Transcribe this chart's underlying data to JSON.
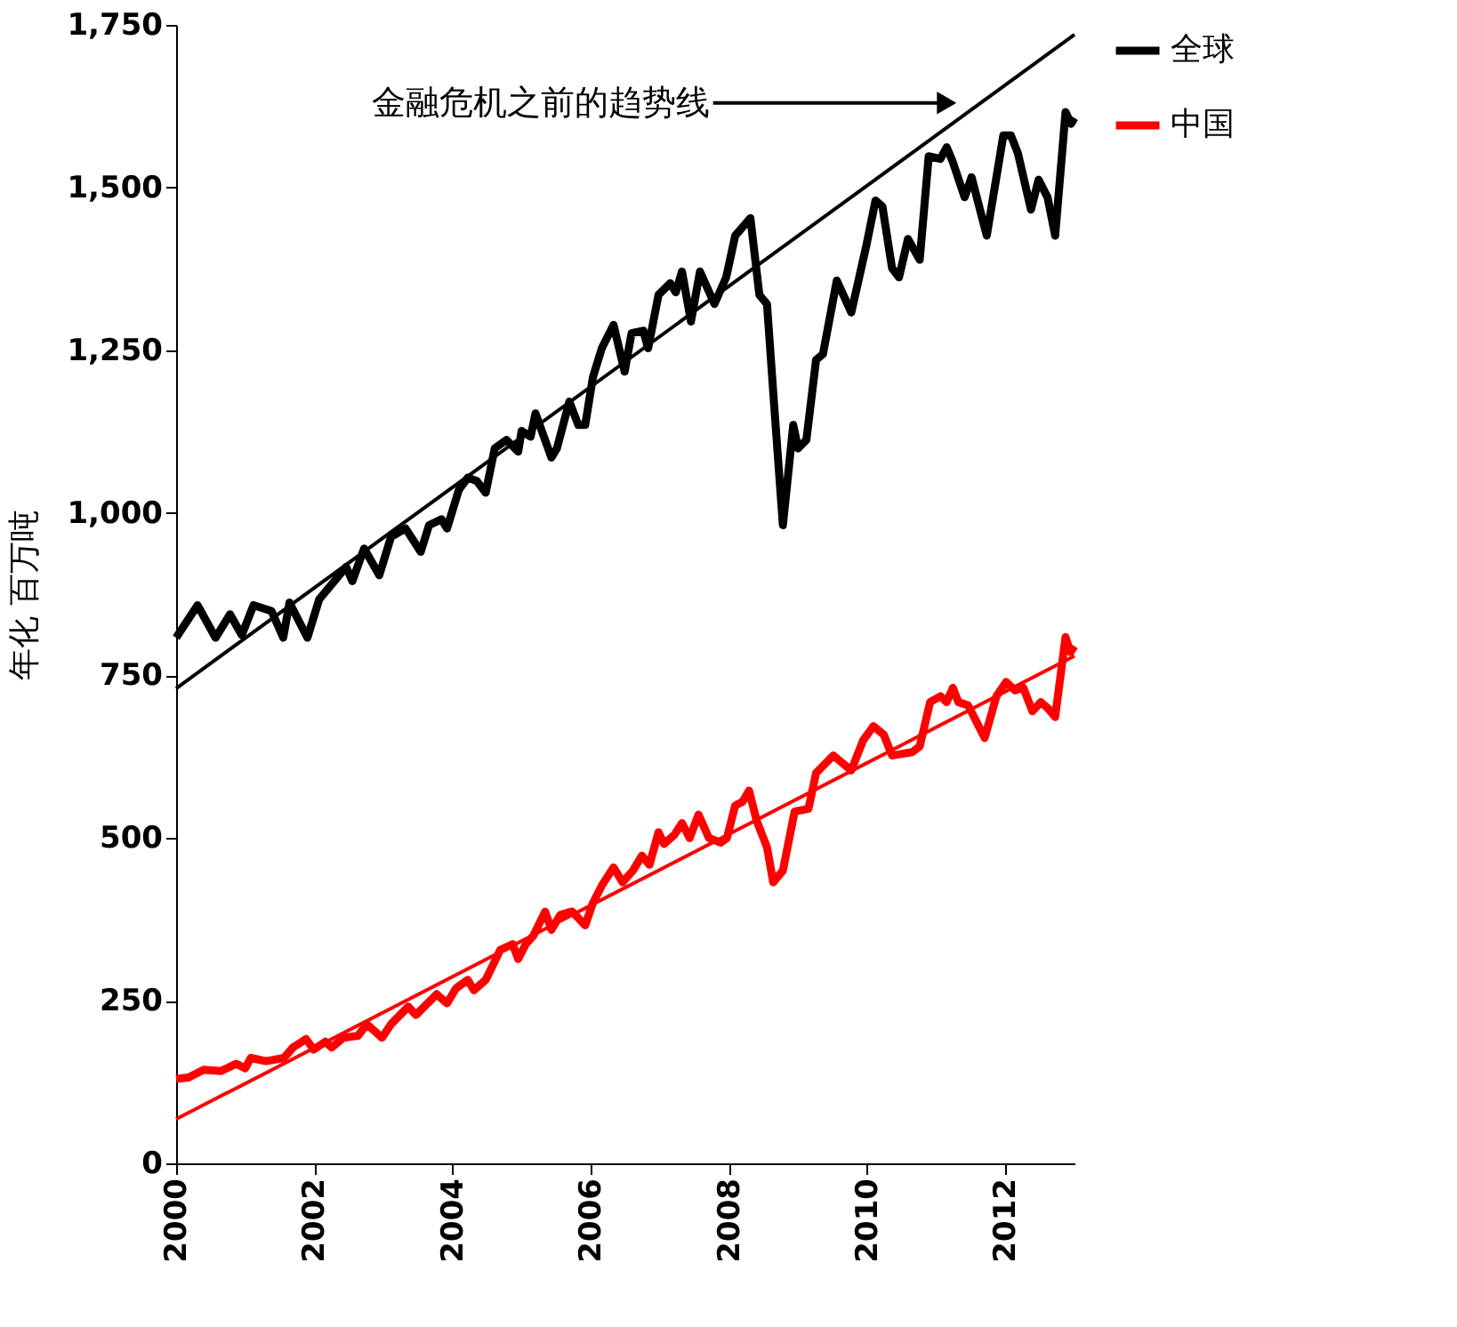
{
  "chart_data": {
    "type": "line",
    "ylabel": "年化 百万吨",
    "legend": "right",
    "grid": false,
    "line_style": "solid",
    "marker": "none",
    "xlim": [
      2000,
      2013
    ],
    "xticks": [
      2000,
      2002,
      2004,
      2006,
      2008,
      2010,
      2012
    ],
    "ylim": [
      0,
      1750
    ],
    "yticks": [
      0,
      250,
      500,
      750,
      {
        "value": 1000,
        "label": "1,000"
      },
      {
        "value": 1250,
        "label": "1,250"
      },
      {
        "value": 1500,
        "label": "1,500"
      },
      {
        "value": 1750,
        "label": "1,750"
      }
    ],
    "annotations": [
      {
        "text": "金融危机之前的趋势线",
        "x": 2011.15,
        "y": 1630
      }
    ],
    "series": [
      {
        "name": "全球",
        "color": "#000000",
        "x": [
          2000,
          2000.31,
          2000.57,
          2000.78,
          2000.95,
          2001.12,
          2001.38,
          2001.55,
          2001.64,
          2001.9,
          2002.07,
          2002.29,
          2002.46,
          2002.55,
          2002.72,
          2002.94,
          2003.11,
          2003.32,
          2003.54,
          2003.66,
          2003.84,
          2003.92,
          2004.09,
          2004.22,
          2004.35,
          2004.48,
          2004.61,
          2004.78,
          2004.95,
          2005.0,
          2005.13,
          2005.2,
          2005.43,
          2005.51,
          2005.69,
          2005.82,
          2005.92,
          2006.03,
          2006.16,
          2006.33,
          2006.49,
          2006.59,
          2006.76,
          2006.83,
          2006.98,
          2007.15,
          2007.23,
          2007.32,
          2007.45,
          2007.58,
          2007.79,
          2007.96,
          2008.09,
          2008.31,
          2008.44,
          2008.55,
          2008.65,
          2008.78,
          2008.93,
          2009.0,
          2009.12,
          2009.26,
          2009.36,
          2009.56,
          2009.77,
          2009.99,
          2010.12,
          2010.22,
          2010.36,
          2010.46,
          2010.59,
          2010.76,
          2010.89,
          2011.06,
          2011.15,
          2011.24,
          2011.41,
          2011.51,
          2011.73,
          2011.97,
          2012.08,
          2012.18,
          2012.37,
          2012.48,
          2012.61,
          2012.72,
          2012.87,
          2012.95,
          2013.0
        ],
        "values": [
          808,
          858,
          808,
          844,
          812,
          858,
          849,
          808,
          862,
          808,
          867,
          895,
          917,
          895,
          945,
          904,
          963,
          976,
          940,
          981,
          990,
          976,
          1035,
          1054,
          1049,
          1031,
          1099,
          1112,
          1094,
          1126,
          1117,
          1153,
          1085,
          1099,
          1171,
          1135,
          1135,
          1208,
          1253,
          1289,
          1217,
          1276,
          1280,
          1253,
          1335,
          1353,
          1339,
          1371,
          1294,
          1371,
          1321,
          1362,
          1426,
          1453,
          1335,
          1321,
          1171,
          981,
          1135,
          1099,
          1112,
          1235,
          1244,
          1357,
          1308,
          1412,
          1480,
          1471,
          1376,
          1362,
          1421,
          1389,
          1548,
          1544,
          1562,
          1539,
          1485,
          1516,
          1426,
          1580,
          1580,
          1553,
          1466,
          1512,
          1485,
          1426,
          1616,
          1598,
          1607
        ]
      },
      {
        "name": "中国",
        "color": "#ff0000",
        "x": [
          2000,
          2000.18,
          2000.4,
          2000.65,
          2000.87,
          2001.0,
          2001.08,
          2001.3,
          2001.56,
          2001.69,
          2001.88,
          2001.99,
          2002.16,
          2002.25,
          2002.42,
          2002.63,
          2002.76,
          2002.98,
          2003.11,
          2003.36,
          2003.47,
          2003.62,
          2003.77,
          2003.92,
          2004.05,
          2004.22,
          2004.31,
          2004.48,
          2004.69,
          2004.87,
          2004.95,
          2005.06,
          2005.17,
          2005.34,
          2005.43,
          2005.56,
          2005.73,
          2005.92,
          2006.03,
          2006.16,
          2006.33,
          2006.46,
          2006.61,
          2006.74,
          2006.85,
          2006.98,
          2007.06,
          2007.21,
          2007.32,
          2007.43,
          2007.56,
          2007.71,
          2007.88,
          2007.97,
          2008.09,
          2008.2,
          2008.29,
          2008.4,
          2008.55,
          2008.64,
          2008.78,
          2008.95,
          2009.15,
          2009.26,
          2009.51,
          2009.77,
          2009.94,
          2010.09,
          2010.24,
          2010.36,
          2010.65,
          2010.76,
          2010.91,
          2011.06,
          2011.15,
          2011.24,
          2011.32,
          2011.46,
          2011.7,
          2011.87,
          2012.01,
          2012.14,
          2012.26,
          2012.39,
          2012.51,
          2012.61,
          2012.72,
          2012.87,
          2012.94,
          2013.0
        ],
        "values": [
          130,
          132,
          144,
          142,
          153,
          146,
          162,
          157,
          162,
          178,
          191,
          175,
          187,
          178,
          193,
          196,
          214,
          193,
          214,
          241,
          228,
          244,
          260,
          246,
          269,
          282,
          266,
          282,
          328,
          337,
          314,
          337,
          350,
          387,
          359,
          382,
          387,
          366,
          400,
          427,
          455,
          432,
          450,
          473,
          459,
          509,
          491,
          505,
          523,
          500,
          536,
          500,
          493,
          500,
          550,
          556,
          573,
          527,
          486,
          432,
          450,
          541,
          545,
          600,
          627,
          604,
          650,
          672,
          659,
          627,
          632,
          641,
          709,
          718,
          709,
          731,
          709,
          704,
          654,
          718,
          740,
          727,
          731,
          695,
          709,
          700,
          686,
          809,
          786,
          795
        ]
      },
      {
        "type": "line",
        "color": "#000000",
        "x": [
          2000,
          2013
        ],
        "values": [
          730,
          1735
        ]
      },
      {
        "type": "line",
        "color": "#ff0000",
        "x": [
          2000,
          2013
        ],
        "values": [
          68,
          780
        ]
      }
    ]
  }
}
